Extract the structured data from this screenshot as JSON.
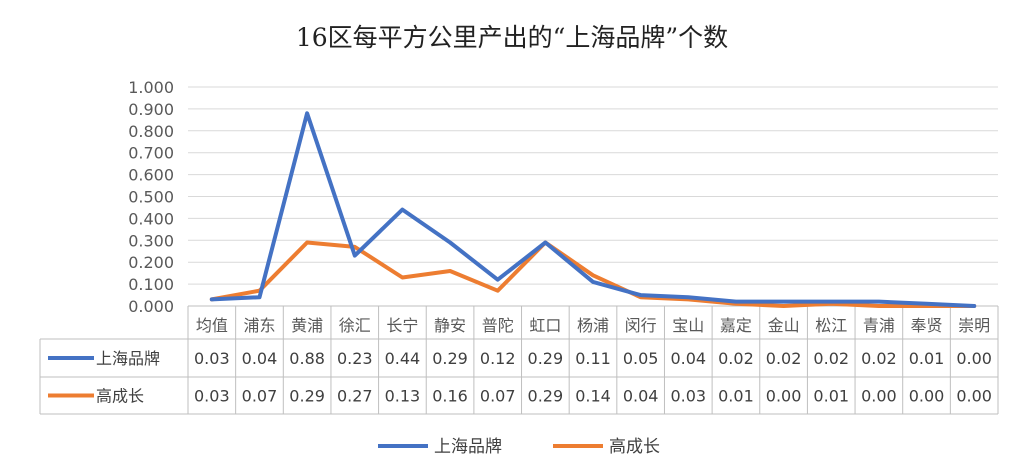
{
  "chart_data": {
    "type": "line",
    "title": "16区每平方公里产出的“上海品牌”个数",
    "categories": [
      "均值",
      "浦东",
      "黄浦",
      "徐汇",
      "长宁",
      "静安",
      "普陀",
      "虹口",
      "杨浦",
      "闵行",
      "宝山",
      "嘉定",
      "金山",
      "松江",
      "青浦",
      "奉贤",
      "崇明"
    ],
    "ylim": [
      0,
      1.0
    ],
    "yticks": [
      "0.000",
      "0.100",
      "0.200",
      "0.300",
      "0.400",
      "0.500",
      "0.600",
      "0.700",
      "0.800",
      "0.900",
      "1.000"
    ],
    "grid": true,
    "legend_position": "bottom",
    "series": [
      {
        "name": "上海品牌",
        "color": "#4472C4",
        "values": [
          0.03,
          0.04,
          0.88,
          0.23,
          0.44,
          0.29,
          0.12,
          0.29,
          0.11,
          0.05,
          0.04,
          0.02,
          0.02,
          0.02,
          0.02,
          0.01,
          0.0
        ],
        "labels": [
          "0.03",
          "0.04",
          "0.88",
          "0.23",
          "0.44",
          "0.29",
          "0.12",
          "0.29",
          "0.11",
          "0.05",
          "0.04",
          "0.02",
          "0.02",
          "0.02",
          "0.02",
          "0.01",
          "0.00"
        ]
      },
      {
        "name": "高成长",
        "color": "#ED7D31",
        "values": [
          0.03,
          0.07,
          0.29,
          0.27,
          0.13,
          0.16,
          0.07,
          0.29,
          0.14,
          0.04,
          0.03,
          0.01,
          0.0,
          0.01,
          0.0,
          0.0,
          0.0
        ],
        "labels": [
          "0.03",
          "0.07",
          "0.29",
          "0.27",
          "0.13",
          "0.16",
          "0.07",
          "0.29",
          "0.14",
          "0.04",
          "0.03",
          "0.01",
          "0.00",
          "0.01",
          "0.00",
          "0.00",
          "0.00"
        ]
      }
    ]
  }
}
